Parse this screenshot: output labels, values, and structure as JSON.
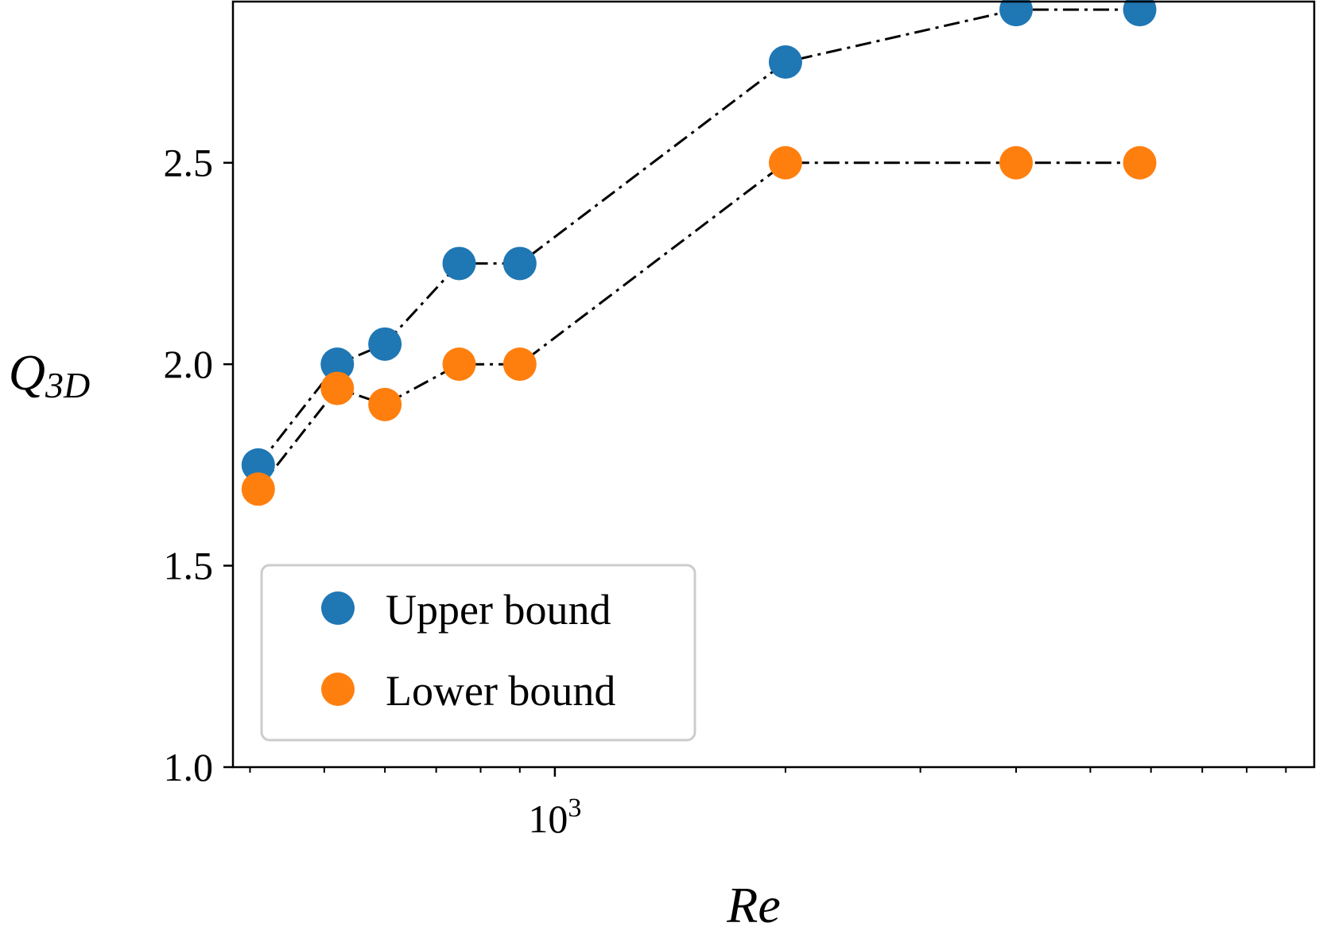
{
  "chart_data": {
    "type": "scatter",
    "xlabel": "Re",
    "ylabel": {
      "main": "Q",
      "sub": "3D"
    },
    "xscale": "log",
    "xlim": [
      380,
      9800
    ],
    "ylim": [
      1.0,
      2.9
    ],
    "yticks": [
      {
        "value": 1.0,
        "label": "1.0"
      },
      {
        "value": 1.5,
        "label": "1.5"
      },
      {
        "value": 2.0,
        "label": "2.0"
      },
      {
        "value": 2.5,
        "label": "2.5"
      }
    ],
    "xticks_major": [
      {
        "value": 1000,
        "base": "10",
        "exp": "3"
      }
    ],
    "xticks_minor": [
      400,
      500,
      600,
      700,
      800,
      900,
      2000,
      3000,
      4000,
      5000,
      6000,
      7000,
      8000,
      9000
    ],
    "grid": false,
    "legend_position": "lower-left",
    "line_style": "dash-dot",
    "line_color": "#000000",
    "series": [
      {
        "name": "Upper bound",
        "color": "#1f77b4",
        "x": [
          410,
          520,
          600,
          750,
          900,
          2000,
          4000,
          5800
        ],
        "y": [
          1.75,
          2.0,
          2.05,
          2.25,
          2.25,
          2.75,
          2.88,
          2.88
        ]
      },
      {
        "name": "Lower bound",
        "color": "#ff7f0e",
        "x": [
          410,
          520,
          600,
          750,
          900,
          2000,
          4000,
          5800
        ],
        "y": [
          1.69,
          1.94,
          1.9,
          2.0,
          2.0,
          2.5,
          2.5,
          2.5
        ]
      }
    ]
  }
}
